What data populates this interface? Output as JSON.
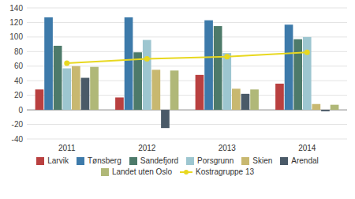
{
  "chart_data": {
    "type": "bar",
    "categories": [
      "2011",
      "2012",
      "2013",
      "2014"
    ],
    "series": [
      {
        "name": "Larvik",
        "color": "#b94040",
        "values": [
          28,
          17,
          48,
          36
        ]
      },
      {
        "name": "Tønsberg",
        "color": "#3d7aaa",
        "values": [
          127,
          127,
          123,
          117
        ]
      },
      {
        "name": "Sandefjord",
        "color": "#4d7a6a",
        "values": [
          88,
          79,
          115,
          97
        ]
      },
      {
        "name": "Porsgrunn",
        "color": "#9dc6d0",
        "values": [
          57,
          96,
          78,
          100
        ]
      },
      {
        "name": "Skien",
        "color": "#c8b870",
        "values": [
          60,
          55,
          29,
          8
        ]
      },
      {
        "name": "Arendal",
        "color": "#4a5a68",
        "values": [
          44,
          -25,
          22,
          -2
        ]
      },
      {
        "name": "Landet uten Oslo",
        "color": "#b0b878",
        "values": [
          59,
          54,
          28,
          7
        ]
      },
      {
        "name": "Kostragruppe 13",
        "type": "line",
        "marker": "circle",
        "color": "#e8d820",
        "values": [
          64,
          70,
          73,
          79
        ]
      }
    ],
    "ylim": [
      -40,
      140
    ],
    "yticks": [
      -40,
      -20,
      0,
      20,
      40,
      60,
      80,
      100,
      120,
      140
    ],
    "grid": true,
    "legend": "bottom"
  }
}
